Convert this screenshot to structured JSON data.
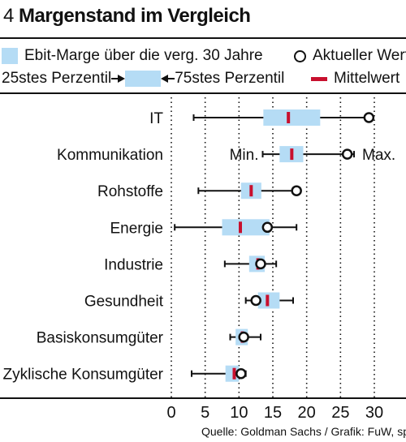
{
  "header": {
    "number": "4",
    "title": "Margenstand im Vergleich"
  },
  "legend": {
    "range_label": "Ebit-Marge über die verg. 30 Jahre",
    "current_label": "Aktueller Wert",
    "p25_label": "25stes Perzentil",
    "p75_label": "75stes Perzentil",
    "mean_label": "Mittelwert"
  },
  "source": "Quelle: Goldman Sachs / Grafik: FuW, sp",
  "colors": {
    "box": "#b5dcf5",
    "mean": "#c8102e",
    "line": "#111111"
  },
  "chart_data": {
    "type": "box",
    "orientation": "horizontal",
    "xlim": [
      0,
      30
    ],
    "xticks": [
      0,
      5,
      10,
      15,
      20,
      25,
      30
    ],
    "grid": "dotted-vertical",
    "annotations": {
      "min_label": "Min.",
      "max_label": "Max.",
      "row": "Kommunikation"
    },
    "categories": [
      "IT",
      "Kommunikation",
      "Rohstoffe",
      "Energie",
      "Industrie",
      "Gesundheit",
      "Basiskonsumgüter",
      "Zyklische Konsumgüter"
    ],
    "min": [
      3.3,
      13.5,
      4.0,
      0.5,
      7.9,
      11.0,
      8.7,
      3.0
    ],
    "p25": [
      13.6,
      16.0,
      10.3,
      7.5,
      11.5,
      12.8,
      9.5,
      8.0
    ],
    "p75": [
      22.0,
      19.5,
      13.3,
      14.5,
      13.8,
      16.0,
      11.3,
      10.0
    ],
    "max": [
      29.5,
      27.0,
      18.5,
      18.5,
      15.5,
      18.0,
      13.2,
      11.0
    ],
    "mean": [
      17.3,
      17.8,
      11.8,
      10.2,
      12.8,
      14.2,
      10.5,
      9.3
    ],
    "current": [
      29.2,
      26.0,
      18.5,
      14.2,
      13.2,
      12.5,
      10.7,
      10.3
    ]
  }
}
